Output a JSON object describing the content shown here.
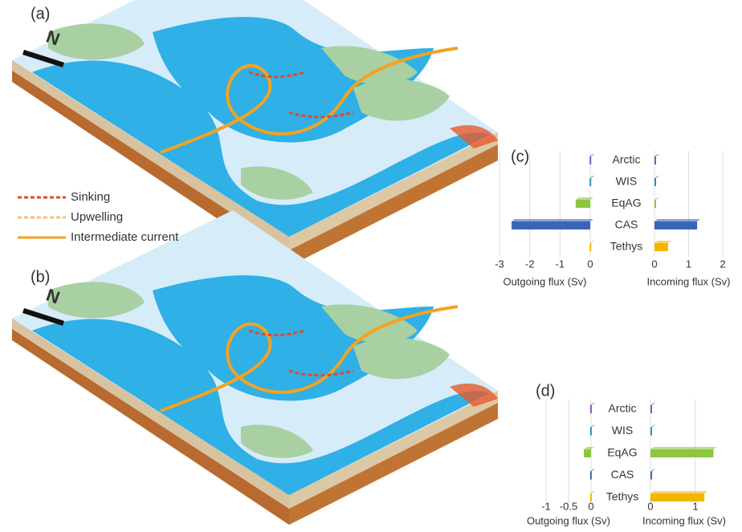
{
  "panel_labels": [
    "(a)",
    "(b)"
  ],
  "compass": [
    "N",
    "N"
  ],
  "legend": [
    "Sinking",
    "Upwelling",
    "Intermediate current"
  ],
  "chart_data": [
    {
      "type": "bar",
      "orientation": "horizontal",
      "label": "(c)",
      "categories": [
        "Arctic",
        "WIS",
        "EqAG",
        "CAS",
        "Tethys"
      ],
      "colors": [
        "#8b4fc4",
        "#2a8fc0",
        "#8dc63f",
        "#3a64b8",
        "#f2b700"
      ],
      "outgoing": {
        "values": [
          -0.02,
          -0.02,
          -0.48,
          -2.6,
          -0.02
        ],
        "xlabel": "Outgoing flux (Sv)",
        "xlim": [
          -3,
          0
        ],
        "xticks": [
          -3,
          -2,
          -1,
          0
        ]
      },
      "incoming": {
        "values": [
          0.02,
          0.02,
          0.02,
          1.25,
          0.4
        ],
        "xlabel": "Incoming flux (Sv)",
        "xlim": [
          0,
          2
        ],
        "xticks": [
          0,
          1,
          2
        ]
      }
    },
    {
      "type": "bar",
      "orientation": "horizontal",
      "label": "(d)",
      "categories": [
        "Arctic",
        "WIS",
        "EqAG",
        "CAS",
        "Tethys"
      ],
      "colors": [
        "#8b4fc4",
        "#2a8fc0",
        "#8dc63f",
        "#3a64b8",
        "#f2b700"
      ],
      "outgoing": {
        "values": [
          -0.02,
          -0.02,
          -0.16,
          -0.02,
          -0.02
        ],
        "xlabel": "Outgoing flux (Sv)",
        "xlim": [
          -1,
          0
        ],
        "xticks": [
          -1,
          -0.5,
          0
        ]
      },
      "incoming": {
        "values": [
          0.02,
          0.02,
          1.4,
          0.02,
          1.2
        ],
        "xlabel": "Incoming flux (Sv)",
        "xlim": [
          0,
          1.5
        ],
        "xticks": [
          0,
          1
        ]
      }
    }
  ]
}
